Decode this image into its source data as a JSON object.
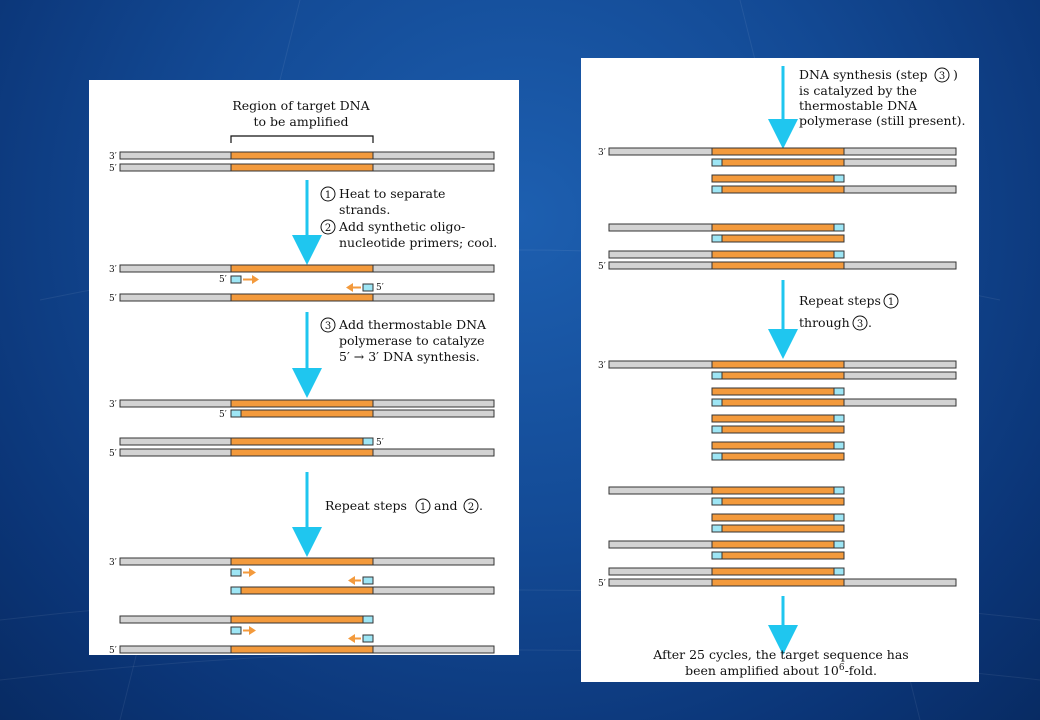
{
  "colors": {
    "background": "#134a95",
    "strand_gray": "#d3d3d3",
    "strand_orange": "#f39a3c",
    "primer_blue": "#9ee6f5",
    "arrow_cyan": "#1fc6ef",
    "primer_arrow_orange": "#f39a3c"
  },
  "left_panel": {
    "region_label_line1": "Region of target DNA",
    "region_label_line2": "to be amplified",
    "step1_num": "1",
    "step1_text": "Heat to separate",
    "step1_text2": "strands.",
    "step2_num": "2",
    "step2_text": "Add synthetic oligo-",
    "step2_text2": "nucleotide primers; cool.",
    "step3_num": "3",
    "step3_text": "Add thermostable DNA",
    "step3_text2": "polymerase to catalyze",
    "step3_text3": "5′ → 3′ DNA synthesis.",
    "repeat_prefix": "Repeat steps",
    "repeat_num1": "1",
    "repeat_mid": "and",
    "repeat_num2": "2",
    "repeat_suffix": ".",
    "end3": "3′",
    "end5": "5′"
  },
  "right_panel": {
    "synth_line1_prefix": "DNA synthesis (step",
    "synth_num": "3",
    "synth_line1_suffix": ")",
    "synth_line2": "is catalyzed by  the",
    "synth_line3": "thermostable DNA",
    "synth_line4": "polymerase (still present).",
    "repeat_line1": "Repeat steps",
    "repeat_num1": "1",
    "repeat_line2": "through",
    "repeat_num2": "3",
    "repeat_suffix": ".",
    "final_line1": "After 25 cycles, the target sequence has",
    "final_line2_prefix": "been amplified about 10",
    "final_exp": "6",
    "final_line2_suffix": "-fold.",
    "end3": "3′",
    "end5": "5′"
  }
}
